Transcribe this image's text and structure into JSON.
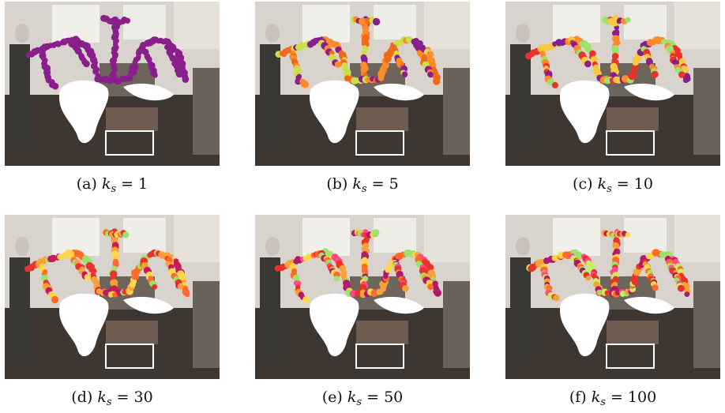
{
  "figure": {
    "panels": [
      {
        "letter": "(a)",
        "k": "1",
        "palette": [
          "#8a1f8c",
          "#8a1f8c",
          "#8a1f8c",
          "#8a1f8c"
        ]
      },
      {
        "letter": "(b)",
        "k": "5",
        "palette": [
          "#f06a1c",
          "#c9e04a",
          "#8a1f8c",
          "#ff8a2a"
        ]
      },
      {
        "letter": "(c)",
        "k": "10",
        "palette": [
          "#e8332b",
          "#f6c93e",
          "#8a1f8c",
          "#ff8a2a",
          "#9be36a"
        ]
      },
      {
        "letter": "(d)",
        "k": "30",
        "palette": [
          "#e8332b",
          "#f6a13a",
          "#c61a5a",
          "#ffd64a",
          "#ff6b2a",
          "#9be36a"
        ]
      },
      {
        "letter": "(e)",
        "k": "50",
        "palette": [
          "#e8332b",
          "#f6a13a",
          "#b01a6a",
          "#ffd64a",
          "#ff6b2a",
          "#9be36a",
          "#ff4a8a"
        ]
      },
      {
        "letter": "(f)",
        "k": "100",
        "palette": [
          "#e8332b",
          "#f6a13a",
          "#b01a6a",
          "#ffd64a",
          "#ff6b2a",
          "#9be36a",
          "#ff4a8a",
          "#c8f05a"
        ]
      }
    ],
    "caption_symbol": "k",
    "caption_subscript": "s",
    "caption_equals": " = "
  }
}
